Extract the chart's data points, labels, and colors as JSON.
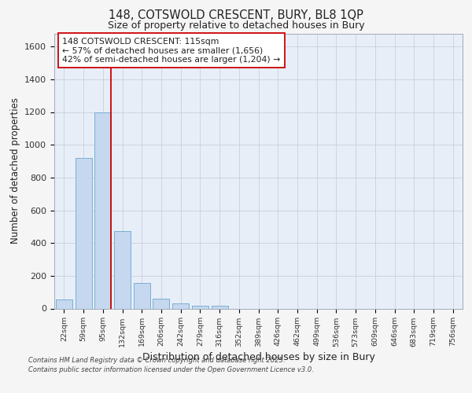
{
  "title1": "148, COTSWOLD CRESCENT, BURY, BL8 1QP",
  "title2": "Size of property relative to detached houses in Bury",
  "xlabel": "Distribution of detached houses by size in Bury",
  "ylabel": "Number of detached properties",
  "bin_labels": [
    "22sqm",
    "59sqm",
    "95sqm",
    "132sqm",
    "169sqm",
    "206sqm",
    "242sqm",
    "279sqm",
    "316sqm",
    "352sqm",
    "389sqm",
    "426sqm",
    "462sqm",
    "499sqm",
    "536sqm",
    "573sqm",
    "609sqm",
    "646sqm",
    "683sqm",
    "719sqm",
    "756sqm"
  ],
  "bar_heights": [
    55,
    920,
    1200,
    475,
    155,
    58,
    30,
    15,
    15,
    0,
    0,
    0,
    0,
    0,
    0,
    0,
    0,
    0,
    0,
    0,
    0
  ],
  "bar_color": "#c5d8ef",
  "bar_edge_color": "#7aafd4",
  "red_line_color": "#cc0000",
  "annotation_text": "148 COTSWOLD CRESCENT: 115sqm\n← 57% of detached houses are smaller (1,656)\n42% of semi-detached houses are larger (1,204) →",
  "annotation_box_color": "#ffffff",
  "annotation_edge_color": "#cc0000",
  "ylim": [
    0,
    1680
  ],
  "yticks": [
    0,
    200,
    400,
    600,
    800,
    1000,
    1200,
    1400,
    1600
  ],
  "fig_bg_color": "#f5f5f5",
  "plot_bg": "#e8eef8",
  "grid_color": "#c8d0dc",
  "footer_line1": "Contains HM Land Registry data © Crown copyright and database right 2025.",
  "footer_line2": "Contains public sector information licensed under the Open Government Licence v3.0."
}
